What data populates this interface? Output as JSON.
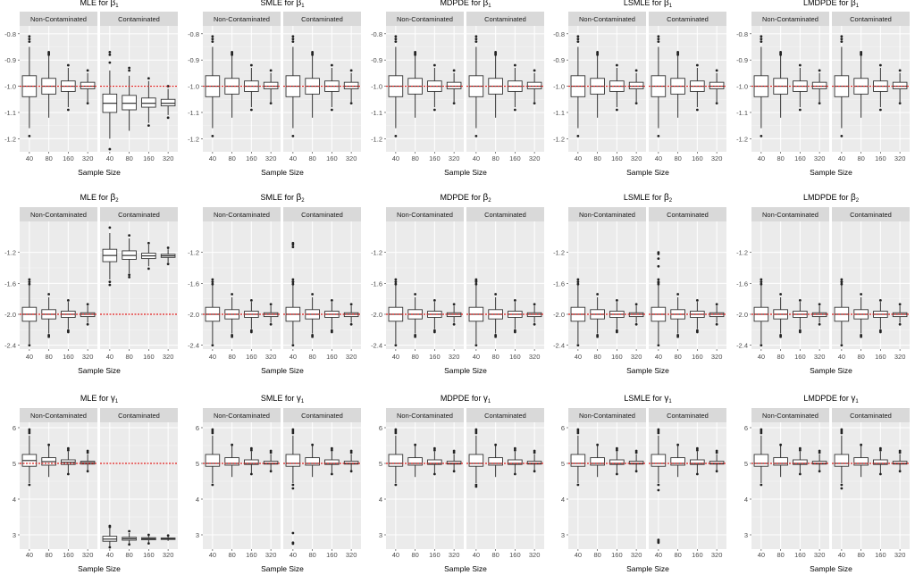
{
  "chart_data": {
    "type": "boxplot-grid",
    "facets": [
      "Non-Contaminated",
      "Contaminated"
    ],
    "xlabel": "Sample Size",
    "categories": [
      "40",
      "80",
      "160",
      "320"
    ],
    "rows": [
      {
        "parameter": "β1",
        "true_value": -1.0,
        "ylim": [
          -1.25,
          -0.77
        ],
        "yticks": [
          -0.8,
          -0.9,
          -1.0,
          -1.1,
          -1.2
        ],
        "ytick_labels": [
          "-0.8",
          "-0.9",
          "-1.0",
          "-1.1",
          "-1.2"
        ],
        "panels": [
          {
            "title": "MLE for",
            "symbol": "β",
            "sub": "1",
            "facets": [
              {
                "boxes": [
                  {
                    "q1": -1.04,
                    "med": -1.0,
                    "q3": -0.96,
                    "lo": -1.16,
                    "hi": -0.85,
                    "out": [
                      -0.81,
                      -0.82,
                      -0.83,
                      -1.19
                    ]
                  },
                  {
                    "q1": -1.03,
                    "med": -1.0,
                    "q3": -0.97,
                    "lo": -1.12,
                    "hi": -0.88,
                    "out": [
                      -0.87,
                      -0.875,
                      -0.88
                    ]
                  },
                  {
                    "q1": -1.02,
                    "med": -1.0,
                    "q3": -0.98,
                    "lo": -1.08,
                    "hi": -0.93,
                    "out": [
                      -0.92,
                      -1.09
                    ]
                  },
                  {
                    "q1": -1.01,
                    "med": -1.0,
                    "q3": -0.985,
                    "lo": -1.06,
                    "hi": -0.95,
                    "out": [
                      -0.94,
                      -1.065
                    ]
                  }
                ]
              },
              {
                "boxes": [
                  {
                    "q1": -1.1,
                    "med": -1.065,
                    "q3": -1.03,
                    "lo": -1.2,
                    "hi": -0.94,
                    "out": [
                      -0.87,
                      -0.88,
                      -0.91,
                      -1.24
                    ]
                  },
                  {
                    "q1": -1.09,
                    "med": -1.065,
                    "q3": -1.035,
                    "lo": -1.17,
                    "hi": -0.96,
                    "out": [
                      -0.93,
                      -0.94
                    ]
                  },
                  {
                    "q1": -1.08,
                    "med": -1.065,
                    "q3": -1.045,
                    "lo": -1.14,
                    "hi": -0.98,
                    "out": [
                      -0.97,
                      -1.15
                    ]
                  },
                  {
                    "q1": -1.075,
                    "med": -1.065,
                    "q3": -1.05,
                    "lo": -1.11,
                    "hi": -1.01,
                    "out": [
                      -1.0,
                      -1.12
                    ]
                  }
                ]
              }
            ]
          },
          {
            "title": "SMLE for",
            "symbol": "β",
            "sub": "1",
            "robust": true
          },
          {
            "title": "MDPDE for",
            "symbol": "β",
            "sub": "1",
            "robust": true
          },
          {
            "title": "LSMLE for",
            "symbol": "β",
            "sub": "1",
            "robust": true
          },
          {
            "title": "LMDPDE for",
            "symbol": "β",
            "sub": "1",
            "robust": true
          }
        ]
      },
      {
        "parameter": "β2",
        "true_value": -2.0,
        "ylim": [
          -2.45,
          -0.8
        ],
        "yticks": [
          -1.2,
          -1.6,
          -2.0,
          -2.4
        ],
        "ytick_labels": [
          "-1.2",
          "-1.6",
          "-2.0",
          "-2.4"
        ],
        "panels": [
          {
            "title": "MLE for",
            "symbol": "β",
            "sub": "2",
            "facets": [
              {
                "boxes": [
                  {
                    "q1": -2.09,
                    "med": -2.0,
                    "q3": -1.91,
                    "lo": -2.38,
                    "hi": -1.62,
                    "out": [
                      -1.55,
                      -1.58,
                      -1.61,
                      -2.4
                    ]
                  },
                  {
                    "q1": -2.06,
                    "med": -2.0,
                    "q3": -1.94,
                    "lo": -2.25,
                    "hi": -1.78,
                    "out": [
                      -1.74,
                      -2.27,
                      -2.29
                    ]
                  },
                  {
                    "q1": -2.04,
                    "med": -2.0,
                    "q3": -1.96,
                    "lo": -2.19,
                    "hi": -1.84,
                    "out": [
                      -1.82,
                      -2.21,
                      -2.23
                    ]
                  },
                  {
                    "q1": -2.03,
                    "med": -2.0,
                    "q3": -1.98,
                    "lo": -2.11,
                    "hi": -1.89,
                    "out": [
                      -1.87,
                      -2.13
                    ]
                  }
                ]
              },
              {
                "boxes": [
                  {
                    "q1": -1.32,
                    "med": -1.24,
                    "q3": -1.16,
                    "lo": -1.55,
                    "hi": -0.95,
                    "out": [
                      -0.88,
                      -1.58,
                      -1.62
                    ]
                  },
                  {
                    "q1": -1.29,
                    "med": -1.24,
                    "q3": -1.18,
                    "lo": -1.47,
                    "hi": -1.02,
                    "out": [
                      -0.98,
                      -1.49,
                      -1.52
                    ]
                  },
                  {
                    "q1": -1.28,
                    "med": -1.245,
                    "q3": -1.21,
                    "lo": -1.38,
                    "hi": -1.1,
                    "out": [
                      -1.08,
                      -1.41
                    ]
                  },
                  {
                    "q1": -1.265,
                    "med": -1.245,
                    "q3": -1.225,
                    "lo": -1.33,
                    "hi": -1.16,
                    "out": [
                      -1.14,
                      -1.35
                    ]
                  }
                ]
              }
            ]
          },
          {
            "title": "SMLE for",
            "symbol": "β",
            "sub": "2",
            "robust": true,
            "contam_outliers": [
              -1.08,
              -1.1,
              -1.13,
              -1.58
            ]
          },
          {
            "title": "MDPDE for",
            "symbol": "β",
            "sub": "2",
            "robust": true,
            "contam_outliers": [
              -1.57
            ]
          },
          {
            "title": "LSMLE for",
            "symbol": "β",
            "sub": "2",
            "robust": true,
            "contam_outliers": [
              -1.2,
              -1.22,
              -1.28,
              -1.38,
              -1.59
            ]
          },
          {
            "title": "LMDPDE for",
            "symbol": "β",
            "sub": "2",
            "robust": true,
            "contam_outliers": [
              -1.58
            ]
          }
        ]
      },
      {
        "parameter": "γ1",
        "true_value": 5.0,
        "ylim": [
          2.6,
          6.15
        ],
        "yticks": [
          6,
          5,
          4,
          3
        ],
        "ytick_labels": [
          "6",
          "5",
          "4",
          "3"
        ],
        "panels": [
          {
            "title": "MLE for",
            "symbol": "γ",
            "sub": "1",
            "facets": [
              {
                "boxes": [
                  {
                    "q1": 4.92,
                    "med": 5.08,
                    "q3": 5.25,
                    "lo": 4.45,
                    "hi": 5.78,
                    "out": [
                      5.85,
                      5.9,
                      5.95,
                      4.4
                    ]
                  },
                  {
                    "q1": 4.95,
                    "med": 5.05,
                    "q3": 5.16,
                    "lo": 4.62,
                    "hi": 5.5,
                    "out": [
                      5.52
                    ]
                  },
                  {
                    "q1": 4.97,
                    "med": 5.03,
                    "q3": 5.1,
                    "lo": 4.72,
                    "hi": 5.33,
                    "out": [
                      5.37,
                      5.42,
                      4.7
                    ]
                  },
                  {
                    "q1": 4.98,
                    "med": 5.02,
                    "q3": 5.06,
                    "lo": 4.8,
                    "hi": 5.25,
                    "out": [
                      5.3,
                      5.35,
                      4.78
                    ]
                  }
                ]
              },
              {
                "boxes": [
                  {
                    "q1": 2.82,
                    "med": 2.88,
                    "q3": 2.96,
                    "lo": 2.68,
                    "hi": 3.18,
                    "out": [
                      3.22,
                      3.25,
                      2.65
                    ]
                  },
                  {
                    "q1": 2.85,
                    "med": 2.89,
                    "q3": 2.93,
                    "lo": 2.75,
                    "hi": 3.05,
                    "out": [
                      3.1,
                      2.73
                    ]
                  },
                  {
                    "q1": 2.86,
                    "med": 2.89,
                    "q3": 2.92,
                    "lo": 2.78,
                    "hi": 2.98,
                    "out": [
                      3.0,
                      2.76
                    ]
                  },
                  {
                    "q1": 2.87,
                    "med": 2.89,
                    "q3": 2.91,
                    "lo": 2.83,
                    "hi": 2.96,
                    "out": [
                      2.98
                    ]
                  }
                ]
              }
            ]
          },
          {
            "title": "SMLE for",
            "symbol": "γ",
            "sub": "1",
            "robust": true,
            "contam_outliers": [
              3.05,
              2.75,
              2.78,
              4.3
            ]
          },
          {
            "title": "MDPDE for",
            "symbol": "γ",
            "sub": "1",
            "robust": true,
            "contam_outliers": [
              4.35
            ]
          },
          {
            "title": "LSMLE for",
            "symbol": "γ",
            "sub": "1",
            "robust": true,
            "contam_outliers": [
              2.78,
              2.82,
              2.86,
              4.25
            ]
          },
          {
            "title": "LMDPDE for",
            "symbol": "γ",
            "sub": "1",
            "robust": true,
            "contam_outliers": [
              4.3
            ]
          }
        ]
      }
    ]
  }
}
